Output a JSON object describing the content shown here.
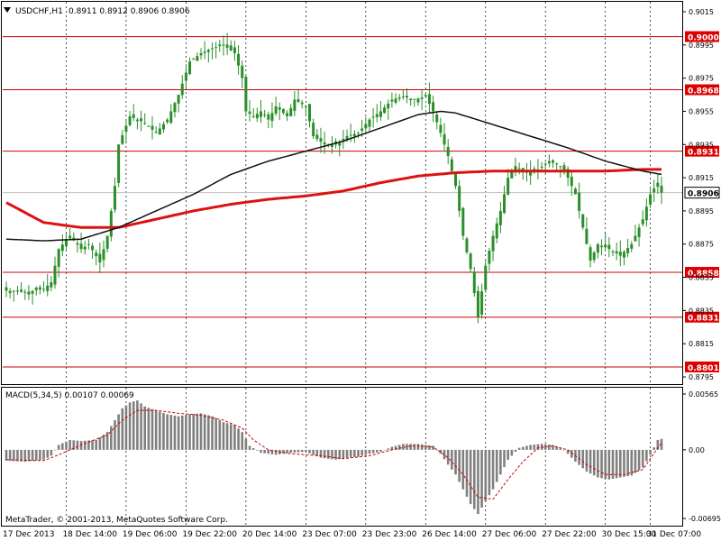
{
  "header": {
    "arrow_icon": "triangle-down-icon",
    "symbol": "USDCHF,H1",
    "ohlc": "0.8911 0.8912 0.8906 0.8906"
  },
  "indicator": {
    "label": "MACD(5,34,5) 0.00107 0.00069"
  },
  "footer": {
    "copyright": "MetaTrader, © 2001-2013, MetaQuotes Software Corp."
  },
  "colors": {
    "candle": "#2a8f2a",
    "level_line": "#cc0000",
    "ma_slow": "#dd1111",
    "ma_fast": "#111111",
    "histogram": "#808080",
    "signal": "#cc0000",
    "price_box": "#dd0000"
  },
  "chart_data": [
    {
      "type": "candlestick",
      "instrument": "USDCHF",
      "timeframe": "H1",
      "ylim": [
        0.8795,
        0.9015
      ],
      "y_ticks": [
        "0.9015",
        "0.8995",
        "0.8975",
        "0.8955",
        "0.8935",
        "0.8915",
        "0.8895",
        "0.8875",
        "0.8855",
        "0.8835",
        "0.8815",
        "0.8795"
      ],
      "x_ticks": [
        "17 Dec 2013",
        "18 Dec 14:00",
        "19 Dec 06:00",
        "19 Dec 22:00",
        "20 Dec 14:00",
        "23 Dec 07:00",
        "23 Dec 23:00",
        "26 Dec 14:00",
        "27 Dec 06:00",
        "27 Dec 22:00",
        "30 Dec 15:00",
        "31 Dec 07:00"
      ],
      "horizontal_levels": [
        "0.9000",
        "0.8968",
        "0.8931",
        "0.8858",
        "0.8831",
        "0.8801"
      ],
      "current_price": "0.8906",
      "price_path": [
        [
          0,
          0.8847
        ],
        [
          5,
          0.8846
        ],
        [
          10,
          0.8848
        ],
        [
          12,
          0.8852
        ],
        [
          14,
          0.8872
        ],
        [
          17,
          0.888
        ],
        [
          20,
          0.8872
        ],
        [
          22,
          0.8875
        ],
        [
          25,
          0.8864
        ],
        [
          27,
          0.888
        ],
        [
          29,
          0.891
        ],
        [
          30,
          0.8935
        ],
        [
          33,
          0.8952
        ],
        [
          37,
          0.8948
        ],
        [
          40,
          0.8942
        ],
        [
          43,
          0.895
        ],
        [
          46,
          0.8965
        ],
        [
          49,
          0.8985
        ],
        [
          52,
          0.899
        ],
        [
          55,
          0.8993
        ],
        [
          58,
          0.8995
        ],
        [
          61,
          0.899
        ],
        [
          63,
          0.8975
        ],
        [
          64,
          0.8955
        ],
        [
          66,
          0.8952
        ],
        [
          68,
          0.8955
        ],
        [
          70,
          0.895
        ],
        [
          72,
          0.8958
        ],
        [
          75,
          0.8952
        ],
        [
          77,
          0.8962
        ],
        [
          80,
          0.8958
        ],
        [
          82,
          0.894
        ],
        [
          85,
          0.8935
        ],
        [
          88,
          0.8935
        ],
        [
          91,
          0.894
        ],
        [
          94,
          0.8942
        ],
        [
          97,
          0.895
        ],
        [
          100,
          0.8955
        ],
        [
          103,
          0.8962
        ],
        [
          106,
          0.8964
        ],
        [
          109,
          0.8962
        ],
        [
          112,
          0.8964
        ],
        [
          114,
          0.8955
        ],
        [
          116,
          0.8942
        ],
        [
          118,
          0.8928
        ],
        [
          120,
          0.891
        ],
        [
          122,
          0.888
        ],
        [
          124,
          0.886
        ],
        [
          126,
          0.8831
        ],
        [
          128,
          0.8862
        ],
        [
          130,
          0.888
        ],
        [
          132,
          0.8895
        ],
        [
          134,
          0.8915
        ],
        [
          136,
          0.8922
        ],
        [
          139,
          0.8918
        ],
        [
          142,
          0.892
        ],
        [
          145,
          0.8925
        ],
        [
          148,
          0.8922
        ],
        [
          150,
          0.8915
        ],
        [
          152,
          0.8905
        ],
        [
          154,
          0.8885
        ],
        [
          156,
          0.8865
        ],
        [
          158,
          0.8875
        ],
        [
          161,
          0.8872
        ],
        [
          164,
          0.8868
        ],
        [
          167,
          0.8875
        ],
        [
          170,
          0.889
        ],
        [
          172,
          0.8905
        ],
        [
          174,
          0.8912
        ],
        [
          175,
          0.8906
        ]
      ],
      "series": [
        {
          "kind": "moving-average",
          "color": "ma_slow",
          "values": [
            [
              0,
              0.89
            ],
            [
              10,
              0.8888
            ],
            [
              20,
              0.8885
            ],
            [
              30,
              0.8885
            ],
            [
              40,
              0.889
            ],
            [
              50,
              0.8895
            ],
            [
              60,
              0.8899
            ],
            [
              70,
              0.8902
            ],
            [
              80,
              0.8904
            ],
            [
              90,
              0.8907
            ],
            [
              100,
              0.8912
            ],
            [
              110,
              0.8916
            ],
            [
              120,
              0.8918
            ],
            [
              130,
              0.8919
            ],
            [
              140,
              0.8919
            ],
            [
              150,
              0.8919
            ],
            [
              160,
              0.8919
            ],
            [
              170,
              0.892
            ],
            [
              175,
              0.892
            ]
          ]
        },
        {
          "kind": "moving-average",
          "color": "ma_fast",
          "values": [
            [
              0,
              0.8878
            ],
            [
              10,
              0.8877
            ],
            [
              20,
              0.8878
            ],
            [
              30,
              0.8885
            ],
            [
              40,
              0.8895
            ],
            [
              50,
              0.8905
            ],
            [
              60,
              0.8917
            ],
            [
              70,
              0.8925
            ],
            [
              80,
              0.8931
            ],
            [
              90,
              0.8937
            ],
            [
              100,
              0.8945
            ],
            [
              110,
              0.8953
            ],
            [
              116,
              0.8955
            ],
            [
              120,
              0.8954
            ],
            [
              130,
              0.8947
            ],
            [
              140,
              0.894
            ],
            [
              150,
              0.8933
            ],
            [
              160,
              0.8925
            ],
            [
              170,
              0.8919
            ],
            [
              175,
              0.8917
            ]
          ]
        }
      ]
    },
    {
      "type": "bar",
      "name": "MACD(5,34,5)",
      "ylim": [
        -0.00695,
        0.00565
      ],
      "y_ticks": [
        "0.00565",
        "0.00",
        "-0.00695"
      ],
      "histogram": [
        [
          0,
          -0.0011
        ],
        [
          5,
          -0.0012
        ],
        [
          10,
          -0.001
        ],
        [
          12,
          -0.0006
        ],
        [
          14,
          0.0005
        ],
        [
          17,
          0.001
        ],
        [
          20,
          0.0009
        ],
        [
          24,
          0.001
        ],
        [
          27,
          0.0018
        ],
        [
          29,
          0.003
        ],
        [
          31,
          0.0042
        ],
        [
          33,
          0.0048
        ],
        [
          35,
          0.005
        ],
        [
          37,
          0.0044
        ],
        [
          40,
          0.004
        ],
        [
          43,
          0.0036
        ],
        [
          46,
          0.0034
        ],
        [
          49,
          0.0036
        ],
        [
          52,
          0.0037
        ],
        [
          55,
          0.0034
        ],
        [
          58,
          0.0028
        ],
        [
          61,
          0.0025
        ],
        [
          63,
          0.0018
        ],
        [
          65,
          0.0004
        ],
        [
          68,
          -0.0003
        ],
        [
          72,
          -0.0005
        ],
        [
          76,
          -0.0003
        ],
        [
          80,
          -0.0002
        ],
        [
          84,
          -0.0008
        ],
        [
          88,
          -0.001
        ],
        [
          91,
          -0.0008
        ],
        [
          94,
          -0.0007
        ],
        [
          97,
          -0.0004
        ],
        [
          100,
          -0.0002
        ],
        [
          103,
          0.0003
        ],
        [
          106,
          0.0006
        ],
        [
          110,
          0.0006
        ],
        [
          114,
          0.0004
        ],
        [
          116,
          -0.0004
        ],
        [
          118,
          -0.0015
        ],
        [
          120,
          -0.0025
        ],
        [
          122,
          -0.004
        ],
        [
          124,
          -0.0055
        ],
        [
          126,
          -0.0065
        ],
        [
          128,
          -0.0052
        ],
        [
          130,
          -0.004
        ],
        [
          132,
          -0.0025
        ],
        [
          134,
          -0.001
        ],
        [
          137,
          0.0002
        ],
        [
          140,
          0.0005
        ],
        [
          143,
          0.0006
        ],
        [
          146,
          0.0005
        ],
        [
          149,
          0.0
        ],
        [
          152,
          -0.0012
        ],
        [
          155,
          -0.0022
        ],
        [
          158,
          -0.0028
        ],
        [
          161,
          -0.003
        ],
        [
          164,
          -0.0028
        ],
        [
          167,
          -0.0026
        ],
        [
          170,
          -0.0018
        ],
        [
          172,
          -0.0005
        ],
        [
          174,
          0.001
        ],
        [
          175,
          0.0011
        ]
      ],
      "signal": [
        [
          0,
          -0.001
        ],
        [
          10,
          -0.0011
        ],
        [
          14,
          -0.0005
        ],
        [
          20,
          0.0005
        ],
        [
          27,
          0.0015
        ],
        [
          31,
          0.003
        ],
        [
          35,
          0.004
        ],
        [
          40,
          0.004
        ],
        [
          46,
          0.0037
        ],
        [
          52,
          0.0035
        ],
        [
          58,
          0.003
        ],
        [
          63,
          0.0022
        ],
        [
          66,
          0.001
        ],
        [
          70,
          0.0
        ],
        [
          76,
          -0.0004
        ],
        [
          84,
          -0.0006
        ],
        [
          90,
          -0.0009
        ],
        [
          97,
          -0.0006
        ],
        [
          103,
          0.0
        ],
        [
          108,
          0.0004
        ],
        [
          114,
          0.0003
        ],
        [
          118,
          -0.0008
        ],
        [
          122,
          -0.0025
        ],
        [
          126,
          -0.0048
        ],
        [
          130,
          -0.005
        ],
        [
          134,
          -0.003
        ],
        [
          138,
          -0.0012
        ],
        [
          142,
          0.0002
        ],
        [
          146,
          0.0004
        ],
        [
          150,
          0.0
        ],
        [
          155,
          -0.0015
        ],
        [
          160,
          -0.0025
        ],
        [
          165,
          -0.0025
        ],
        [
          170,
          -0.002
        ],
        [
          174,
          0.0002
        ],
        [
          175,
          0.0007
        ]
      ]
    }
  ]
}
